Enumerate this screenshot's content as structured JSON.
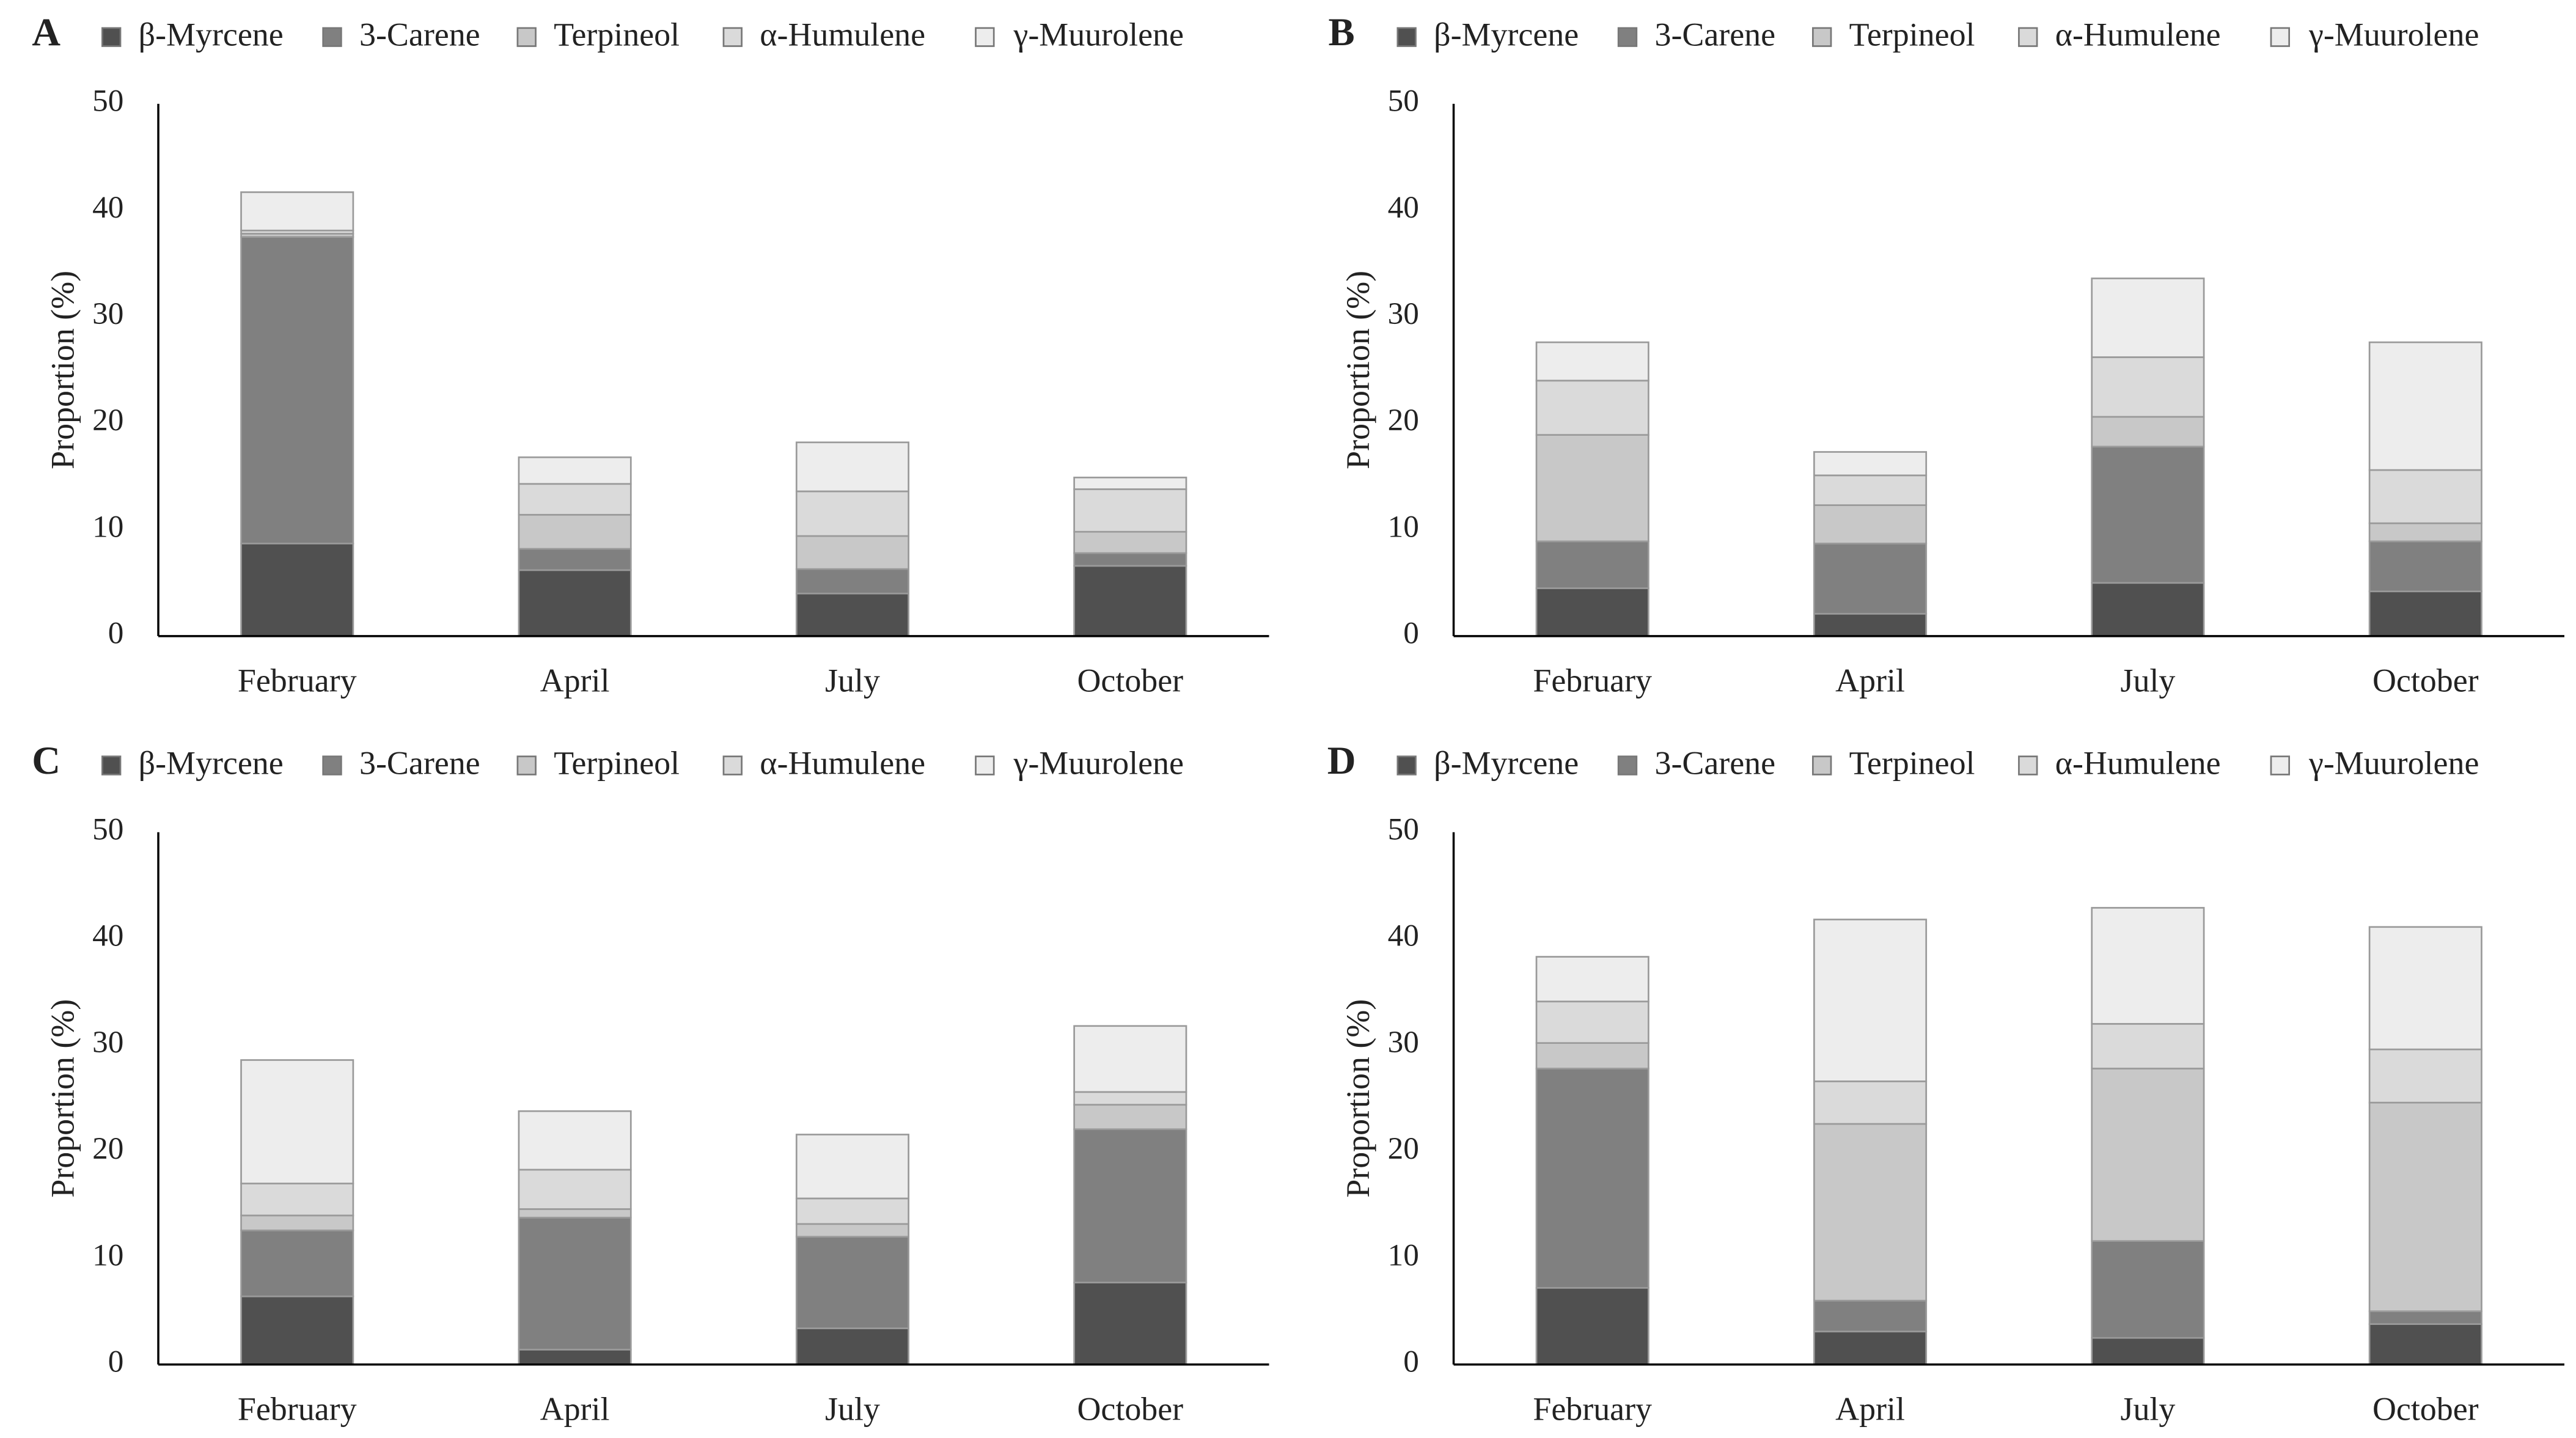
{
  "chart_data": [
    {
      "type": "bar",
      "panel_label": "A",
      "stacked": true,
      "y_label": "Proportion (%)",
      "categories": [
        "February",
        "April",
        "July",
        "October"
      ],
      "series": [
        {
          "name": "β-Myrcene",
          "color": "#505050",
          "values": [
            8.7,
            6.2,
            4.0,
            6.6
          ]
        },
        {
          "name": "3-Carene",
          "color": "#808080",
          "values": [
            28.8,
            2.0,
            2.3,
            1.2
          ]
        },
        {
          "name": "Terpineol",
          "color": "#c8c8c8",
          "values": [
            0.3,
            3.2,
            3.1,
            2.0
          ]
        },
        {
          "name": "α-Humulene",
          "color": "#dadada",
          "values": [
            0.3,
            2.9,
            4.2,
            4.0
          ]
        },
        {
          "name": "γ-Muurolene",
          "color": "#ededed",
          "values": [
            3.6,
            2.5,
            4.6,
            1.1
          ]
        }
      ],
      "ylim": [
        0,
        50
      ],
      "yticks": [
        0,
        10,
        20,
        30,
        40,
        50
      ],
      "grid": false,
      "legend": "top"
    },
    {
      "type": "bar",
      "panel_label": "B",
      "stacked": true,
      "y_label": "Proportion (%)",
      "categories": [
        "February",
        "April",
        "July",
        "October"
      ],
      "series": [
        {
          "name": "β-Myrcene",
          "color": "#505050",
          "values": [
            4.5,
            2.1,
            5.0,
            4.2
          ]
        },
        {
          "name": "3-Carene",
          "color": "#808080",
          "values": [
            4.4,
            6.6,
            12.8,
            4.7
          ]
        },
        {
          "name": "Terpineol",
          "color": "#c8c8c8",
          "values": [
            10.0,
            3.6,
            2.8,
            1.7
          ]
        },
        {
          "name": "α-Humulene",
          "color": "#dadada",
          "values": [
            5.1,
            2.8,
            5.6,
            5.0
          ]
        },
        {
          "name": "γ-Muurolene",
          "color": "#ededed",
          "values": [
            3.6,
            2.2,
            7.4,
            12.0
          ]
        }
      ],
      "ylim": [
        0,
        50
      ],
      "yticks": [
        0,
        10,
        20,
        30,
        40,
        50
      ],
      "grid": false,
      "legend": "top"
    },
    {
      "type": "bar",
      "panel_label": "C",
      "stacked": true,
      "y_label": "Proportion (%)",
      "categories": [
        "February",
        "April",
        "July",
        "October"
      ],
      "series": [
        {
          "name": "β-Myrcene",
          "color": "#505050",
          "values": [
            6.4,
            1.4,
            3.4,
            7.7
          ]
        },
        {
          "name": "3-Carene",
          "color": "#808080",
          "values": [
            6.2,
            12.4,
            8.6,
            14.4
          ]
        },
        {
          "name": "Terpineol",
          "color": "#c8c8c8",
          "values": [
            1.4,
            0.8,
            1.2,
            2.3
          ]
        },
        {
          "name": "α-Humulene",
          "color": "#dadada",
          "values": [
            3.0,
            3.7,
            2.4,
            1.2
          ]
        },
        {
          "name": "γ-Muurolene",
          "color": "#ededed",
          "values": [
            11.6,
            5.5,
            6.0,
            6.2
          ]
        }
      ],
      "ylim": [
        0,
        50
      ],
      "yticks": [
        0,
        10,
        20,
        30,
        40,
        50
      ],
      "grid": false,
      "legend": "top"
    },
    {
      "type": "bar",
      "panel_label": "D",
      "stacked": true,
      "y_label": "Proportion (%)",
      "categories": [
        "February",
        "April",
        "July",
        "October"
      ],
      "series": [
        {
          "name": "β-Myrcene",
          "color": "#505050",
          "values": [
            7.2,
            3.1,
            2.5,
            3.8
          ]
        },
        {
          "name": "3-Carene",
          "color": "#808080",
          "values": [
            20.6,
            2.9,
            9.1,
            1.2
          ]
        },
        {
          "name": "Terpineol",
          "color": "#c8c8c8",
          "values": [
            2.4,
            16.6,
            16.2,
            19.6
          ]
        },
        {
          "name": "α-Humulene",
          "color": "#dadada",
          "values": [
            3.9,
            4.0,
            4.2,
            5.0
          ]
        },
        {
          "name": "γ-Muurolene",
          "color": "#ededed",
          "values": [
            4.2,
            15.2,
            10.9,
            11.5
          ]
        }
      ],
      "ylim": [
        0,
        50
      ],
      "yticks": [
        0,
        10,
        20,
        30,
        40,
        50
      ],
      "grid": false,
      "legend": "top"
    }
  ]
}
